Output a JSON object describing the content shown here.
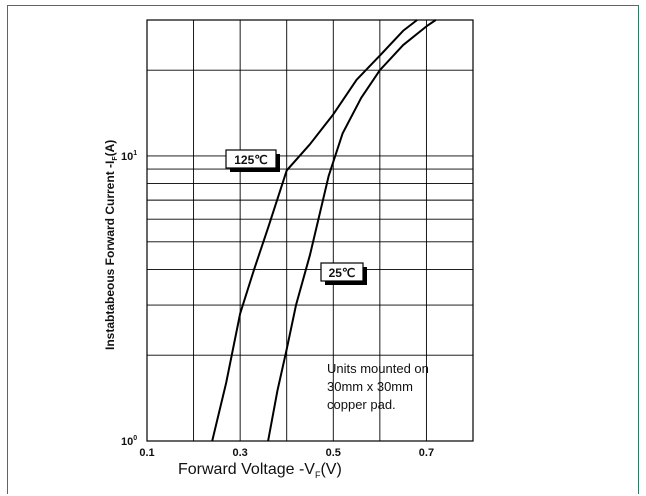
{
  "chart_data": {
    "type": "line",
    "title": "",
    "xlabel": "Forward Voltage -V",
    "xlabel_sub": "F",
    "xlabel_unit": "(V)",
    "ylabel": "Instabtabeous Forward Current -I",
    "ylabel_sub": "F",
    "ylabel_unit": "(A)",
    "xlim": [
      0.1,
      0.8
    ],
    "ylim": [
      1,
      30
    ],
    "yscale": "log",
    "x_ticks": [
      {
        "value": 0.1,
        "label": "0.1"
      },
      {
        "value": 0.3,
        "label": "0.3"
      },
      {
        "value": 0.5,
        "label": "0.5"
      },
      {
        "value": 0.7,
        "label": "0.7"
      }
    ],
    "y_ticks": [
      {
        "value": 1,
        "base": "10",
        "exp": "0"
      },
      {
        "value": 10,
        "base": "10",
        "exp": "1"
      }
    ],
    "grid": true,
    "series": [
      {
        "name": "125℃",
        "x": [
          0.24,
          0.27,
          0.3,
          0.33,
          0.36,
          0.4,
          0.45,
          0.5,
          0.55,
          0.6,
          0.65,
          0.68
        ],
        "y": [
          1.0,
          1.6,
          2.8,
          4.0,
          5.6,
          8.9,
          11.0,
          14.0,
          18.5,
          22.5,
          27.5,
          30.0
        ]
      },
      {
        "name": "25℃",
        "x": [
          0.36,
          0.38,
          0.4,
          0.42,
          0.45,
          0.49,
          0.52,
          0.56,
          0.6,
          0.65,
          0.7,
          0.72
        ],
        "y": [
          1.0,
          1.5,
          2.1,
          3.0,
          4.5,
          8.5,
          12.0,
          16.0,
          20.0,
          24.5,
          28.5,
          30.0
        ]
      }
    ],
    "annotations": [
      "Units mounted on",
      "30mm x 30mm",
      "copper pad."
    ]
  }
}
